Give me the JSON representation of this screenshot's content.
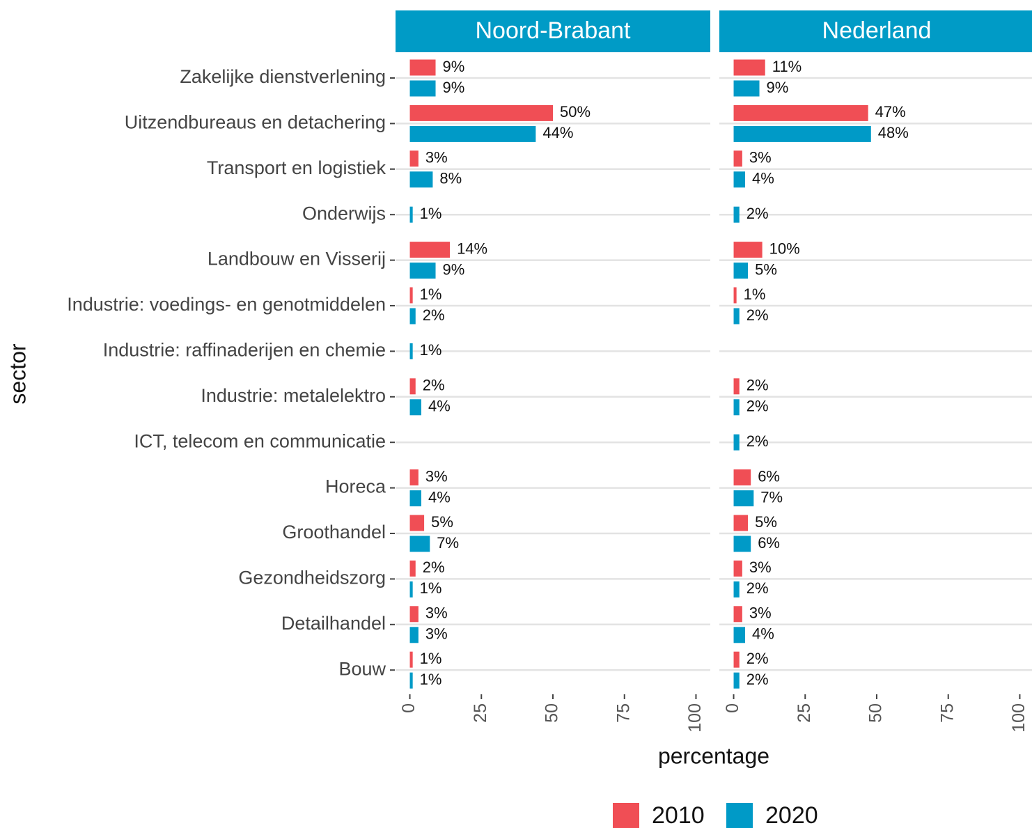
{
  "chart_data": {
    "type": "bar",
    "orientation": "horizontal",
    "xlabel": "percentage",
    "ylabel": "sector",
    "facets": [
      "Noord-Brabant",
      "Nederland"
    ],
    "categories": [
      "Zakelijke dienstverlening",
      "Uitzendbureaus en detachering",
      "Transport en logistiek",
      "Onderwijs",
      "Landbouw en Visserij",
      "Industrie: voedings- en genotmiddelen",
      "Industrie: raffinaderijen en chemie",
      "Industrie: metalelektro",
      "ICT, telecom en communicatie",
      "Horeca",
      "Groothandel",
      "Gezondheidszorg",
      "Detailhandel",
      "Bouw"
    ],
    "series": [
      {
        "name": "2010",
        "color": "#f04e55",
        "values": [
          [
            9,
            50,
            3,
            null,
            14,
            1,
            null,
            2,
            null,
            3,
            5,
            2,
            3,
            1
          ],
          [
            11,
            47,
            3,
            null,
            10,
            1,
            null,
            2,
            null,
            6,
            5,
            3,
            3,
            2
          ]
        ],
        "value_labels": [
          [
            "9%",
            "50%",
            "3%",
            null,
            "14%",
            "1%",
            null,
            "2%",
            null,
            "3%",
            "5%",
            "2%",
            "3%",
            "1%"
          ],
          [
            "11%",
            "47%",
            "3%",
            null,
            "10%",
            "1%",
            null,
            "2%",
            null,
            "6%",
            "5%",
            "3%",
            "3%",
            "2%"
          ]
        ]
      },
      {
        "name": "2020",
        "color": "#009ac7",
        "values": [
          [
            9,
            44,
            8,
            1,
            9,
            2,
            1,
            4,
            null,
            4,
            7,
            1,
            3,
            1
          ],
          [
            9,
            48,
            4,
            2,
            5,
            2,
            null,
            2,
            2,
            7,
            6,
            2,
            4,
            2
          ]
        ],
        "value_labels": [
          [
            "9%",
            "44%",
            "8%",
            "1%",
            "9%",
            "2%",
            "1%",
            "4%",
            null,
            "4%",
            "7%",
            "1%",
            "3%",
            "1%"
          ],
          [
            "9%",
            "48%",
            "4%",
            "2%",
            "5%",
            "2%",
            null,
            "2%",
            "2%",
            "7%",
            "6%",
            "2%",
            "4%",
            "2%"
          ]
        ]
      }
    ],
    "xlim": [
      -5,
      105
    ],
    "xticks": [
      0,
      25,
      50,
      75,
      100
    ],
    "grid": true,
    "legend": "bottom"
  }
}
